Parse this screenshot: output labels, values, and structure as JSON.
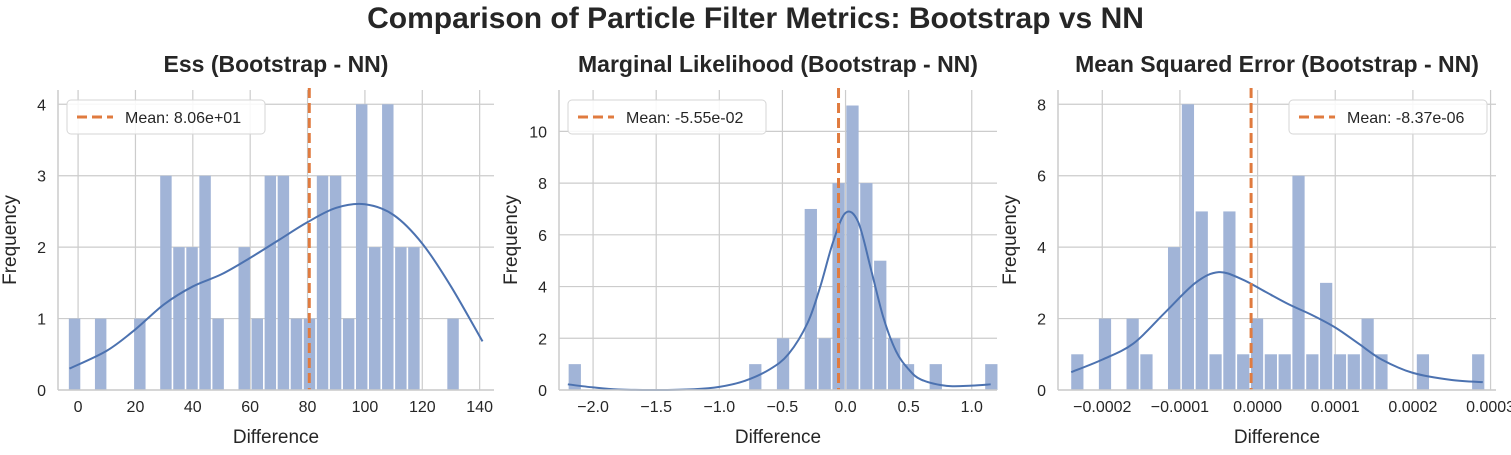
{
  "title": "Comparison of Particle Filter Metrics: Bootstrap vs NN",
  "colors": {
    "bar": "#a1b4d7",
    "kde": "#4c72b0",
    "mean": "#e07b3f",
    "grid": "#cccccc",
    "axis": "#cccccc"
  },
  "chart_data": [
    {
      "type": "bar",
      "title": "Ess (Bootstrap - NN)",
      "xlabel": "Difference",
      "ylabel": "Frequency",
      "xlim": [
        -7,
        145
      ],
      "ylim": [
        0,
        4.2
      ],
      "xticks": [
        0,
        20,
        40,
        60,
        80,
        100,
        120,
        140
      ],
      "xtick_labels": [
        "0",
        "20",
        "40",
        "60",
        "80",
        "100",
        "120",
        "140"
      ],
      "yticks": [
        0,
        1,
        2,
        3,
        4
      ],
      "ytick_labels": [
        "0",
        "1",
        "2",
        "3",
        "4"
      ],
      "bin_start": -3.5,
      "bin_width": 4.55,
      "counts": [
        1,
        0,
        1,
        0,
        0,
        1,
        0,
        3,
        2,
        2,
        3,
        1,
        0,
        2,
        1,
        3,
        3,
        1,
        1,
        3,
        3,
        1,
        4,
        2,
        4,
        2,
        2,
        0,
        0,
        1
      ],
      "kde": {
        "x": [
          -3,
          10,
          20,
          30,
          40,
          50,
          60,
          70,
          80,
          90,
          100,
          110,
          120,
          130,
          141
        ],
        "y": [
          0.3,
          0.55,
          0.85,
          1.2,
          1.45,
          1.62,
          1.85,
          2.1,
          2.35,
          2.55,
          2.6,
          2.45,
          2.05,
          1.45,
          0.68
        ]
      },
      "mean": 80.6,
      "legend_label": "Mean: 8.06e+01",
      "legend_loc": "upper left"
    },
    {
      "type": "bar",
      "title": "Marginal Likelihood (Bootstrap - NN)",
      "xlabel": "Difference",
      "ylabel": "Frequency",
      "xlim": [
        -2.27,
        1.2
      ],
      "ylim": [
        0,
        11.6
      ],
      "xticks": [
        -2.0,
        -1.5,
        -1.0,
        -0.5,
        0.0,
        0.5,
        1.0
      ],
      "xtick_labels": [
        "−2.0",
        "−1.5",
        "−1.0",
        "−0.5",
        "0.0",
        "0.5",
        "1.0"
      ],
      "yticks": [
        0,
        2,
        4,
        6,
        8,
        10
      ],
      "ytick_labels": [
        "0",
        "2",
        "4",
        "6",
        "8",
        "10"
      ],
      "bin_start": -2.2,
      "bin_width": 0.11,
      "counts": [
        1,
        0,
        0,
        0,
        0,
        0,
        0,
        0,
        0,
        0,
        0,
        0,
        0,
        1,
        0,
        2,
        0,
        7,
        2,
        8,
        11,
        8,
        5,
        2,
        1,
        0,
        1,
        0,
        0,
        0,
        1
      ],
      "kde": {
        "x": [
          -2.2,
          -2.0,
          -1.8,
          -1.5,
          -1.2,
          -1.0,
          -0.8,
          -0.6,
          -0.45,
          -0.3,
          -0.2,
          -0.1,
          0.0,
          0.1,
          0.2,
          0.3,
          0.4,
          0.5,
          0.6,
          0.8,
          1.0,
          1.15
        ],
        "y": [
          0.22,
          0.1,
          0.02,
          0.0,
          0.03,
          0.12,
          0.35,
          0.8,
          1.4,
          2.6,
          4.0,
          5.7,
          6.85,
          6.5,
          4.7,
          2.8,
          1.5,
          0.8,
          0.4,
          0.16,
          0.17,
          0.22
        ]
      },
      "mean": -0.0555,
      "legend_label": "Mean: -5.55e-02",
      "legend_loc": "upper left"
    },
    {
      "type": "bar",
      "title": "Mean Squared Error (Bootstrap - NN)",
      "xlabel": "Difference",
      "ylabel": "Frequency",
      "xlim": [
        -0.000257,
        0.000307
      ],
      "ylim": [
        0,
        8.4
      ],
      "xticks": [
        -0.0002,
        -0.0001,
        0.0,
        0.0001,
        0.0002,
        0.0003
      ],
      "xtick_labels": [
        "−0.0002",
        "−0.0001",
        "0.0000",
        "0.0001",
        "0.0002",
        "0.0003"
      ],
      "yticks": [
        0,
        2,
        4,
        6,
        8
      ],
      "ytick_labels": [
        "0",
        "2",
        "4",
        "6",
        "8"
      ],
      "bin_start": -0.000241,
      "bin_width": 1.78e-05,
      "counts": [
        1,
        0,
        2,
        0,
        2,
        1,
        0,
        4,
        8,
        5,
        1,
        5,
        1,
        2,
        1,
        1,
        6,
        1,
        3,
        1,
        1,
        2,
        1,
        0,
        0,
        1,
        0,
        0,
        0,
        1
      ],
      "kde": {
        "x": [
          -0.00024,
          -0.0002,
          -0.00016,
          -0.00012,
          -8e-05,
          -5e-05,
          -2e-05,
          1e-05,
          4e-05,
          7e-05,
          0.0001,
          0.00013,
          0.00016,
          0.0002,
          0.00025,
          0.00029
        ],
        "y": [
          0.5,
          0.85,
          1.3,
          2.15,
          3.0,
          3.3,
          3.1,
          2.75,
          2.4,
          2.1,
          1.75,
          1.3,
          0.85,
          0.48,
          0.28,
          0.22
        ]
      },
      "mean": -8.37e-06,
      "legend_label": "Mean: -8.37e-06",
      "legend_loc": "upper right"
    }
  ]
}
